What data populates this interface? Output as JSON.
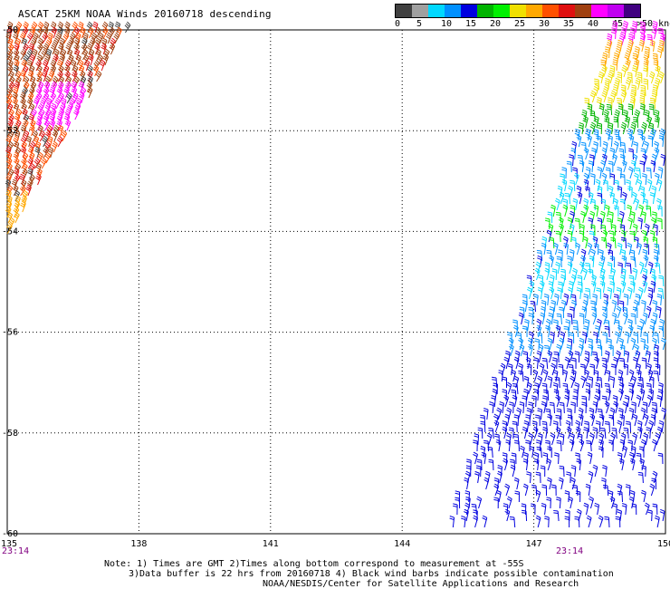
{
  "title": "ASCAT 25KM NOAA Winds 20160718 descending",
  "colorbar": {
    "colors": [
      "#404040",
      "#a0a0a0",
      "#00d8ff",
      "#0090ff",
      "#0000e0",
      "#00b400",
      "#00f000",
      "#f0e000",
      "#ffa800",
      "#ff5000",
      "#e01010",
      "#a04010",
      "#ff00ff",
      "#c000f0",
      "#400080"
    ],
    "labels": [
      "0",
      "5",
      "10",
      "15",
      "20",
      "25",
      "30",
      "35",
      "40",
      "45",
      ">50 knots"
    ]
  },
  "map": {
    "lon_ticks": [
      "135",
      "138",
      "141",
      "144",
      "147",
      "150"
    ],
    "lat_ticks": [
      "-50",
      "-52",
      "-54",
      "-56",
      "-58",
      "-60"
    ],
    "lon_range": [
      135,
      150
    ],
    "lat_range": [
      -60,
      -50
    ],
    "time_left": "23:14",
    "time_right": "23:14",
    "time_color": "#800080",
    "grid": true,
    "grid_style": "dotted"
  },
  "notes": {
    "line1": "Note: 1) Times are GMT 2)Times along bottom correspond to measurement at -55S",
    "line2": "3)Data buffer is 22 hrs from 20160718 4) Black wind barbs indicate possible contamination",
    "line3": "NOAA/NESDIS/Center for Satellite Applications and Research"
  }
}
